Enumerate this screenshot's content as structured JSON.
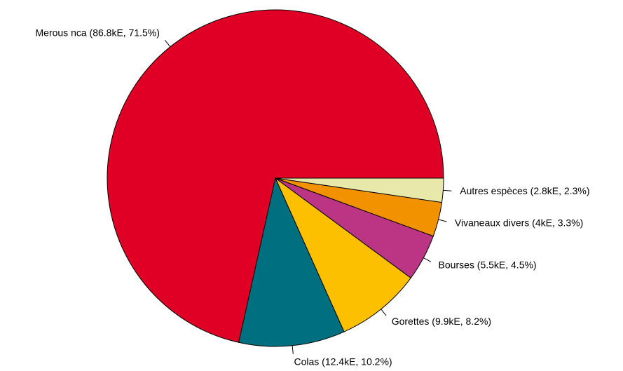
{
  "chart_data": {
    "type": "pie",
    "categories": [
      "Merous nca (86.8kE, 71.5%)",
      "Colas (12.4kE, 10.2%)",
      "Gorettes (9.9kE, 8.2%)",
      "Bourses (5.5kE, 4.5%)",
      "Vivaneaux divers (4kE, 3.3%)",
      "Autres espèces (2.8kE, 2.3%)"
    ],
    "values": [
      71.5,
      10.2,
      8.2,
      4.5,
      3.3,
      2.3
    ],
    "colors": [
      "#e00025",
      "#007080",
      "#fcc000",
      "#bc3585",
      "#f39200",
      "#e8e8aa"
    ]
  }
}
